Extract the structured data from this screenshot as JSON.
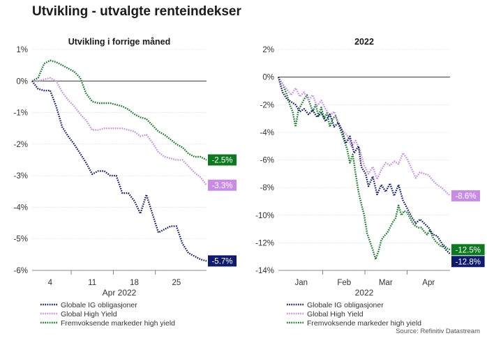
{
  "title": "Utvikling - utvalgte renteindekser",
  "source": "Source: Refinitiv Datastream",
  "legend": [
    {
      "label": "Globale IG obligasjoner",
      "color": "#0d1a6e"
    },
    {
      "label": "Global High Yield",
      "color": "#c98ce6"
    },
    {
      "label": "Fremvoksende markeder high yield",
      "color": "#0b7a1e"
    }
  ],
  "chart_data": [
    {
      "type": "line",
      "title": "Utvikling i forrige måned",
      "xlabel": "Apr 2022",
      "xlim": [
        1,
        30
      ],
      "ylim": [
        -6,
        1
      ],
      "yticks": [
        1,
        0,
        -1,
        -2,
        -3,
        -4,
        -5,
        -6
      ],
      "ytick_labels": [
        "1%",
        "0%",
        "-1%",
        "-2%",
        "-3%",
        "-4%",
        "-5%",
        "-6%"
      ],
      "xticks": [
        4,
        11,
        18,
        25
      ],
      "xtick_labels": [
        "4",
        "11",
        "18",
        "25"
      ],
      "grid": true,
      "series": [
        {
          "name": "Globale IG obligasjoner",
          "color": "#0d1a6e",
          "end_label": "-5.7%",
          "x": [
            1,
            2,
            3,
            4,
            5,
            6,
            7,
            8,
            9,
            10,
            11,
            12,
            13,
            14,
            15,
            16,
            17,
            18,
            19,
            20,
            21,
            22,
            23,
            24,
            25,
            26,
            27,
            28,
            29,
            30
          ],
          "y": [
            0,
            -0.25,
            -0.3,
            -0.3,
            -0.8,
            -1.45,
            -1.75,
            -2.0,
            -2.3,
            -2.6,
            -2.95,
            -2.85,
            -2.85,
            -3.0,
            -3.0,
            -3.55,
            -3.55,
            -3.8,
            -4.2,
            -3.6,
            -4.2,
            -4.8,
            -4.7,
            -4.6,
            -4.6,
            -5.15,
            -5.45,
            -5.55,
            -5.65,
            -5.7
          ]
        },
        {
          "name": "Global High Yield",
          "color": "#c98ce6",
          "end_label": "-3.3%",
          "x": [
            1,
            2,
            3,
            4,
            5,
            6,
            7,
            8,
            9,
            10,
            11,
            12,
            13,
            14,
            15,
            16,
            17,
            18,
            19,
            20,
            21,
            22,
            23,
            24,
            25,
            26,
            27,
            28,
            29,
            30
          ],
          "y": [
            0,
            0,
            0.05,
            0.1,
            0,
            -0.35,
            -0.6,
            -0.8,
            -1.05,
            -1.25,
            -1.55,
            -1.55,
            -1.5,
            -1.5,
            -1.5,
            -1.5,
            -1.55,
            -1.6,
            -1.75,
            -1.7,
            -1.95,
            -2.25,
            -2.4,
            -2.45,
            -2.5,
            -2.5,
            -2.7,
            -2.9,
            -3.05,
            -3.3
          ]
        },
        {
          "name": "Fremvoksende markeder high yield",
          "color": "#0b7a1e",
          "end_label": "-2.5%",
          "x": [
            1,
            2,
            3,
            4,
            5,
            6,
            7,
            8,
            9,
            10,
            11,
            12,
            13,
            14,
            15,
            16,
            17,
            18,
            19,
            20,
            21,
            22,
            23,
            24,
            25,
            26,
            27,
            28,
            29,
            30
          ],
          "y": [
            0,
            0.1,
            0.55,
            0.65,
            0.6,
            0.5,
            0.4,
            0.3,
            0.1,
            -0.4,
            -0.65,
            -0.7,
            -0.7,
            -0.7,
            -0.75,
            -0.8,
            -0.9,
            -1.05,
            -1.15,
            -1.2,
            -1.4,
            -1.6,
            -1.7,
            -1.85,
            -2.0,
            -2.1,
            -2.3,
            -2.4,
            -2.4,
            -2.5
          ]
        }
      ]
    },
    {
      "type": "line",
      "title": "2022",
      "xlabel": "2022",
      "xlim": [
        0,
        120
      ],
      "ylim": [
        -14,
        2
      ],
      "yticks": [
        2,
        0,
        -2,
        -4,
        -6,
        -8,
        -10,
        -12,
        -14
      ],
      "ytick_labels": [
        "2%",
        "0%",
        "-2%",
        "-4%",
        "-6%",
        "-8%",
        "-10%",
        "-12%",
        "-14%"
      ],
      "xticks": [
        16,
        46,
        75,
        105
      ],
      "xtick_labels": [
        "Jan",
        "Feb",
        "Mar",
        "Apr"
      ],
      "grid": true,
      "series": [
        {
          "name": "Globale IG obligasjoner",
          "color": "#0d1a6e",
          "end_label": "-12.8%",
          "x": [
            0,
            3,
            6,
            9,
            12,
            15,
            18,
            21,
            24,
            27,
            30,
            33,
            36,
            39,
            42,
            45,
            47,
            50,
            53,
            56,
            58,
            61,
            63,
            66,
            69,
            72,
            75,
            78,
            81,
            84,
            87,
            90,
            93,
            96,
            99,
            102,
            105,
            108,
            111,
            114,
            117,
            120
          ],
          "y": [
            0,
            -1.1,
            -1.6,
            -1.8,
            -2.0,
            -2.5,
            -2.3,
            -2.7,
            -2.4,
            -2.9,
            -2.6,
            -3.2,
            -2.7,
            -3.6,
            -3.3,
            -4.0,
            -4.8,
            -4.3,
            -5.5,
            -5.0,
            -6.5,
            -7.0,
            -7.9,
            -7.2,
            -8.5,
            -7.8,
            -8.3,
            -7.7,
            -8.6,
            -7.8,
            -8.9,
            -9.5,
            -10.1,
            -10.6,
            -10.3,
            -10.6,
            -10.9,
            -11.4,
            -11.5,
            -12.0,
            -12.5,
            -12.8
          ]
        },
        {
          "name": "Global High Yield",
          "color": "#c98ce6",
          "end_label": "-8.6%",
          "x": [
            0,
            3,
            6,
            9,
            12,
            15,
            18,
            21,
            24,
            27,
            30,
            33,
            36,
            39,
            42,
            45,
            48,
            51,
            54,
            57,
            60,
            63,
            66,
            69,
            72,
            75,
            78,
            81,
            84,
            87,
            90,
            93,
            96,
            99,
            102,
            105,
            108,
            111,
            114,
            117,
            120
          ],
          "y": [
            0,
            -0.5,
            -0.9,
            -1.3,
            -0.8,
            -1.4,
            -1.1,
            -1.7,
            -1.3,
            -2.1,
            -1.7,
            -2.3,
            -2.8,
            -2.5,
            -3.4,
            -3.9,
            -4.2,
            -5.0,
            -4.6,
            -5.3,
            -6.4,
            -7.0,
            -6.5,
            -7.4,
            -6.7,
            -6.2,
            -6.4,
            -6.1,
            -6.3,
            -5.5,
            -5.9,
            -6.6,
            -7.3,
            -6.9,
            -7.0,
            -7.1,
            -7.5,
            -7.8,
            -8.0,
            -8.3,
            -8.6
          ]
        },
        {
          "name": "Fremvoksende markeder high yield",
          "color": "#0b7a1e",
          "end_label": "-12.5%",
          "x": [
            0,
            3,
            6,
            8,
            10,
            12,
            14,
            16,
            18,
            20,
            22,
            24,
            26,
            28,
            30,
            32,
            34,
            36,
            38,
            40,
            42,
            44,
            46,
            48,
            50,
            52,
            54,
            56,
            58,
            60,
            62,
            64,
            66,
            68,
            70,
            72,
            74,
            76,
            78,
            80,
            82,
            84,
            86,
            88,
            90,
            92,
            94,
            96,
            98,
            100,
            102,
            104,
            106,
            108,
            110,
            112,
            114,
            116,
            118,
            120
          ],
          "y": [
            0,
            -0.5,
            -1.3,
            -2.0,
            -2.5,
            -3.6,
            -2.4,
            -2.0,
            -1.6,
            -1.3,
            -1.9,
            -2.5,
            -2.0,
            -2.8,
            -2.2,
            -3.0,
            -2.6,
            -3.6,
            -3.0,
            -2.8,
            -3.4,
            -4.0,
            -4.6,
            -5.2,
            -6.2,
            -5.6,
            -7.0,
            -8.3,
            -9.2,
            -10.0,
            -11.3,
            -11.9,
            -12.5,
            -13.2,
            -12.6,
            -11.8,
            -11.5,
            -11.3,
            -10.9,
            -10.5,
            -10.2,
            -9.3,
            -10.0,
            -9.7,
            -9.8,
            -10.2,
            -10.6,
            -10.8,
            -10.9,
            -10.9,
            -11.2,
            -11.4,
            -11.1,
            -11.6,
            -11.9,
            -12.1,
            -12.3,
            -12.2,
            -12.4,
            -12.5
          ]
        }
      ]
    }
  ]
}
